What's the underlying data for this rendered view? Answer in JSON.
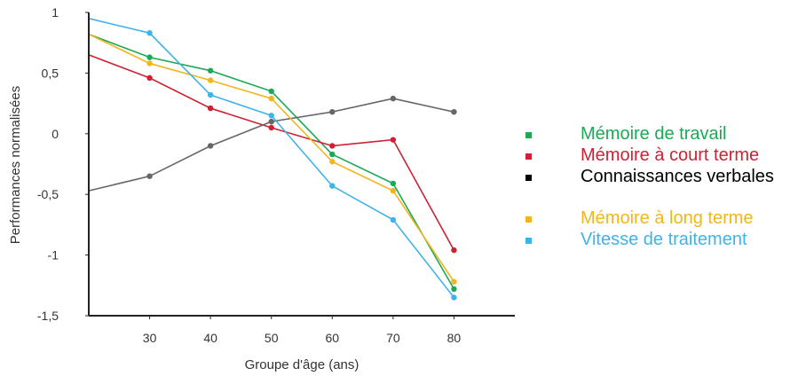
{
  "chart_data": {
    "type": "line",
    "xlabel": "Groupe d'âge (ans)",
    "ylabel": "Performances normalisées",
    "xlim": [
      20,
      90
    ],
    "ylim": [
      -1.5,
      1
    ],
    "x_ticks": [
      "30",
      "40",
      "50",
      "60",
      "70",
      "80"
    ],
    "y_ticks": [
      "1",
      "0,5",
      "0",
      "-0,5",
      "-1",
      "-1,5"
    ],
    "grid": false,
    "legend_position": "right",
    "series": [
      {
        "name": "Mémoire de travail",
        "color": "#1aaa55",
        "points": [
          [
            20,
            0.82
          ],
          [
            30,
            0.63
          ],
          [
            40,
            0.52
          ],
          [
            50,
            0.35
          ],
          [
            60,
            -0.17
          ],
          [
            70,
            -0.41
          ],
          [
            80,
            -1.28
          ]
        ]
      },
      {
        "name": "Mémoire à court terme",
        "color": "#cc2233",
        "points": [
          [
            20,
            0.65
          ],
          [
            30,
            0.46
          ],
          [
            40,
            0.21
          ],
          [
            50,
            0.05
          ],
          [
            60,
            -0.1
          ],
          [
            70,
            -0.05
          ],
          [
            80,
            -0.96
          ]
        ]
      },
      {
        "name": "Connaissances verbales",
        "color": "#666666",
        "legend_color": "#000000",
        "points": [
          [
            20,
            -0.47
          ],
          [
            30,
            -0.35
          ],
          [
            40,
            -0.1
          ],
          [
            50,
            0.1
          ],
          [
            60,
            0.18
          ],
          [
            70,
            0.29
          ],
          [
            80,
            0.18
          ]
        ]
      },
      {
        "name": "Mémoire à long terme",
        "color": "#f2b51c",
        "points": [
          [
            20,
            0.82
          ],
          [
            30,
            0.58
          ],
          [
            40,
            0.44
          ],
          [
            50,
            0.29
          ],
          [
            60,
            -0.23
          ],
          [
            70,
            -0.47
          ],
          [
            80,
            -1.22
          ]
        ]
      },
      {
        "name": "Vitesse de traitement",
        "color": "#3db4e8",
        "points": [
          [
            20,
            0.95
          ],
          [
            30,
            0.83
          ],
          [
            40,
            0.32
          ],
          [
            50,
            0.15
          ],
          [
            60,
            -0.43
          ],
          [
            70,
            -0.71
          ],
          [
            80,
            -1.35
          ]
        ]
      }
    ]
  }
}
